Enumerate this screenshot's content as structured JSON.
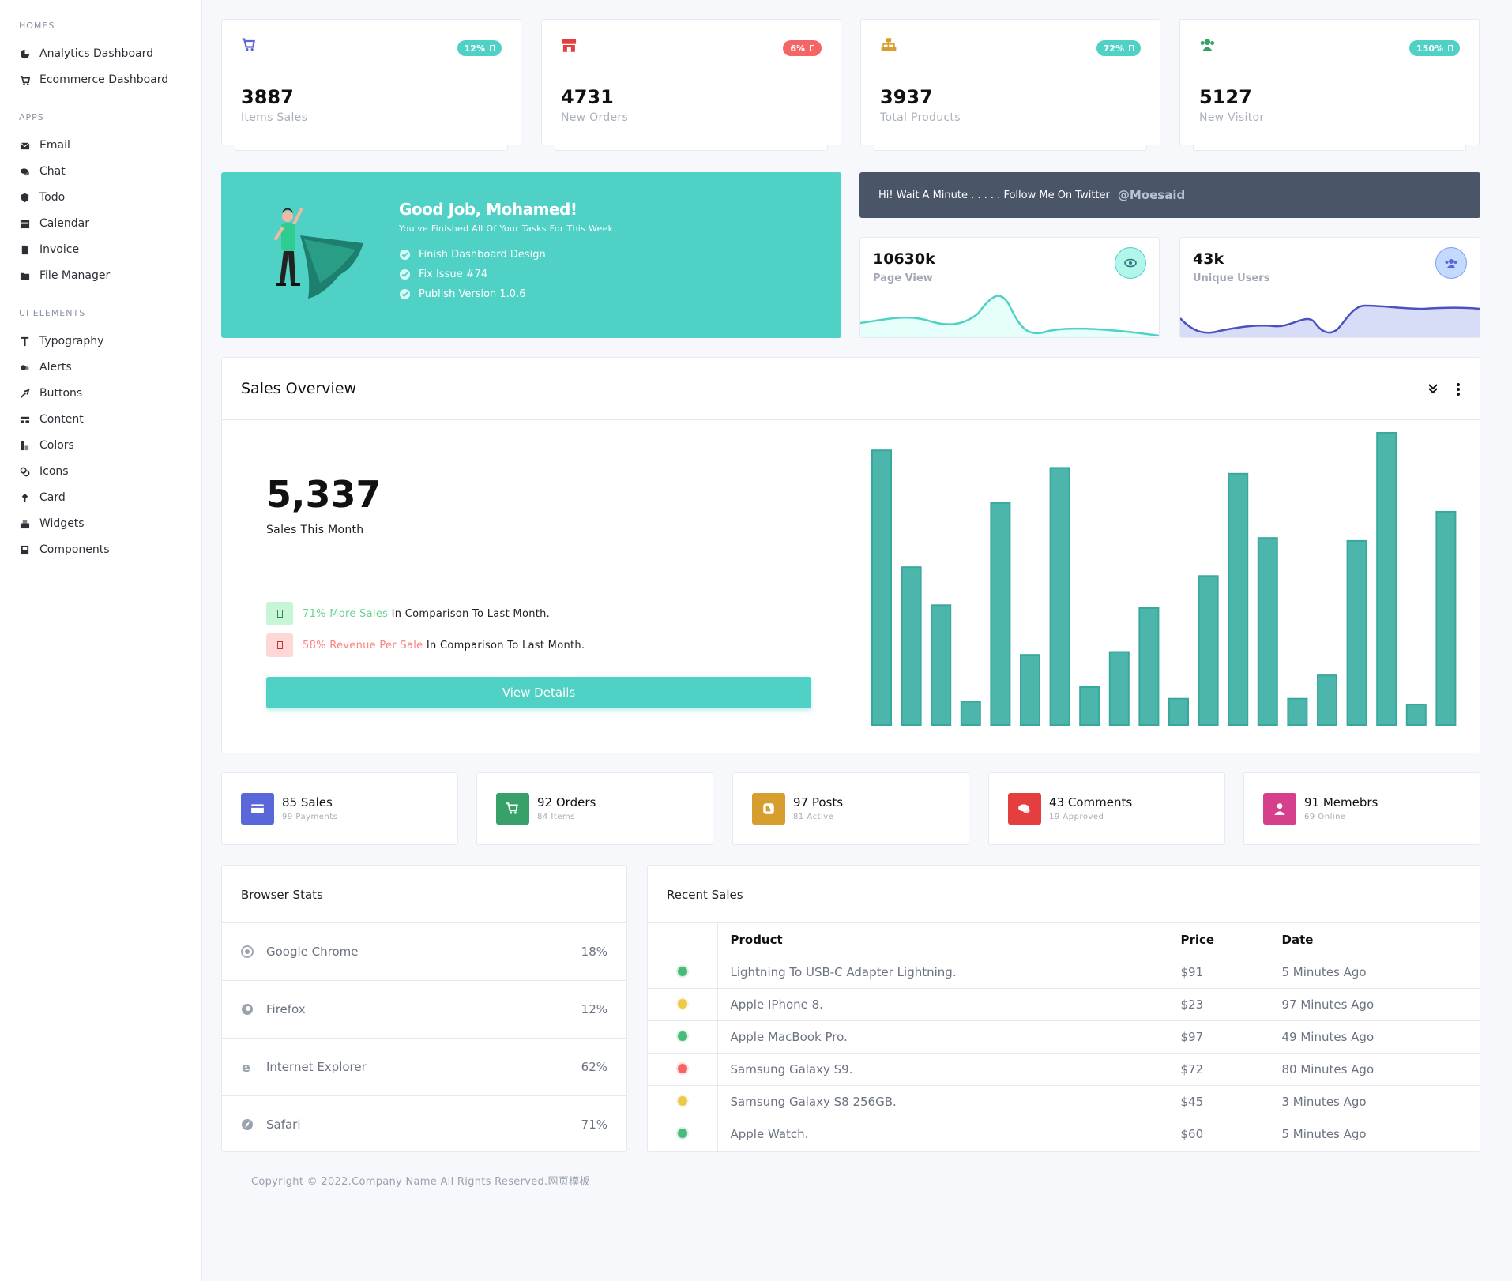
{
  "sidebar": {
    "homes_heading": "HOMES",
    "homes": [
      {
        "label": "Analytics Dashboard",
        "icon": "pie-chart-icon"
      },
      {
        "label": "Ecommerce Dashboard",
        "icon": "cart-icon"
      }
    ],
    "apps_heading": "APPS",
    "apps": [
      {
        "label": "Email",
        "icon": "envelope-icon"
      },
      {
        "label": "Chat",
        "icon": "chat-icon"
      },
      {
        "label": "Todo",
        "icon": "shield-icon"
      },
      {
        "label": "Calendar",
        "icon": "calendar-icon"
      },
      {
        "label": "Invoice",
        "icon": "file-icon"
      },
      {
        "label": "File Manager",
        "icon": "folder-icon"
      }
    ],
    "ui_heading": "UI ELEMENTS",
    "ui": [
      {
        "label": "Typography",
        "icon": "text-icon"
      },
      {
        "label": "Alerts",
        "icon": "bell-icon"
      },
      {
        "label": "Buttons",
        "icon": "cursor-icon"
      },
      {
        "label": "Content",
        "icon": "layout-icon"
      },
      {
        "label": "Colors",
        "icon": "palette-icon"
      },
      {
        "label": "Icons",
        "icon": "icons-icon"
      },
      {
        "label": "Card",
        "icon": "card-icon"
      },
      {
        "label": "Widgets",
        "icon": "widgets-icon"
      },
      {
        "label": "Components",
        "icon": "components-icon"
      }
    ]
  },
  "stats": [
    {
      "value": "3887",
      "label": "Items Sales",
      "badge": "12%",
      "color": "#4fd1c5",
      "icon": "cart-icon",
      "icon_color": "#5a67d8"
    },
    {
      "value": "4731",
      "label": "New Orders",
      "badge": "6%",
      "color": "#f56565",
      "icon": "store-icon",
      "icon_color": "#e53e3e"
    },
    {
      "value": "3937",
      "label": "Total Products",
      "badge": "72%",
      "color": "#4fd1c5",
      "icon": "sitemap-icon",
      "icon_color": "#d69e2e"
    },
    {
      "value": "5127",
      "label": "New Visitor",
      "badge": "150%",
      "color": "#4fd1c5",
      "icon": "users-icon",
      "icon_color": "#38a169"
    }
  ],
  "welcome": {
    "title": "Good Job, Mohamed!",
    "subtitle": "You've Finished All Of Your Tasks For This Week.",
    "tasks": [
      "Finish Dashboard Design",
      "Fix Issue #74",
      "Publish Version 1.0.6"
    ]
  },
  "twitter": {
    "text": "Hi! Wait A Minute . . . . . Follow Me On Twitter",
    "handle": "@Moesaid"
  },
  "mini": [
    {
      "value": "10630k",
      "label": "Page View",
      "icon": "eye-icon",
      "color": "#4fd1c5"
    },
    {
      "value": "43k",
      "label": "Unique Users",
      "icon": "users-icon",
      "color": "#5a67d8"
    }
  ],
  "overview": {
    "title": "Sales Overview",
    "big": "5,337",
    "big_label": "Sales This Month",
    "row1_hl": "71% More Sales",
    "row1_rest": " In Comparison To Last Month.",
    "row2_hl": "58% Revenue Per Sale",
    "row2_rest": " In Comparison To Last Month.",
    "button": "View Details"
  },
  "chart_data": {
    "type": "bar",
    "values": [
      94,
      54,
      41,
      8,
      76,
      24,
      88,
      13,
      25,
      40,
      9,
      51,
      86,
      64,
      9,
      17,
      63,
      100,
      7,
      73
    ],
    "color": "#4db6ac"
  },
  "small_stats": [
    {
      "title": "85 Sales",
      "sub": "99 Payments",
      "color": "#5a67d8",
      "icon": "card-icon"
    },
    {
      "title": "92 Orders",
      "sub": "84 Items",
      "color": "#38a169",
      "icon": "cart-icon"
    },
    {
      "title": "97 Posts",
      "sub": "81 Active",
      "color": "#d69e2e",
      "icon": "blogger-icon"
    },
    {
      "title": "43 Comments",
      "sub": "19 Approved",
      "color": "#e53e3e",
      "icon": "comments-icon"
    },
    {
      "title": "91 Memebrs",
      "sub": "69 Online",
      "color": "#d53f8c",
      "icon": "user-icon"
    }
  ],
  "browsers": {
    "title": "Browser Stats",
    "items": [
      {
        "name": "Google Chrome",
        "pct": "18%",
        "icon": "chrome-icon"
      },
      {
        "name": "Firefox",
        "pct": "12%",
        "icon": "firefox-icon"
      },
      {
        "name": "Internet Explorer",
        "pct": "62%",
        "icon": "ie-icon"
      },
      {
        "name": "Safari",
        "pct": "71%",
        "icon": "safari-icon"
      }
    ]
  },
  "sales": {
    "title": "Recent Sales",
    "headers": [
      "Product",
      "Price",
      "Date"
    ],
    "rows": [
      {
        "status": "#48bb78",
        "product": "Lightning To USB-C Adapter Lightning.",
        "price": "$91",
        "date": "5 Minutes Ago"
      },
      {
        "status": "#ecc94b",
        "product": "Apple IPhone 8.",
        "price": "$23",
        "date": "97 Minutes Ago"
      },
      {
        "status": "#48bb78",
        "product": "Apple MacBook Pro.",
        "price": "$97",
        "date": "49 Minutes Ago"
      },
      {
        "status": "#f56565",
        "product": "Samsung Galaxy S9.",
        "price": "$72",
        "date": "80 Minutes Ago"
      },
      {
        "status": "#ecc94b",
        "product": "Samsung Galaxy S8 256GB.",
        "price": "$45",
        "date": "3 Minutes Ago"
      },
      {
        "status": "#48bb78",
        "product": "Apple Watch.",
        "price": "$60",
        "date": "5 Minutes Ago"
      }
    ]
  },
  "footer": "Copyright © 2022.Company Name All Rights Reserved.网页模板"
}
